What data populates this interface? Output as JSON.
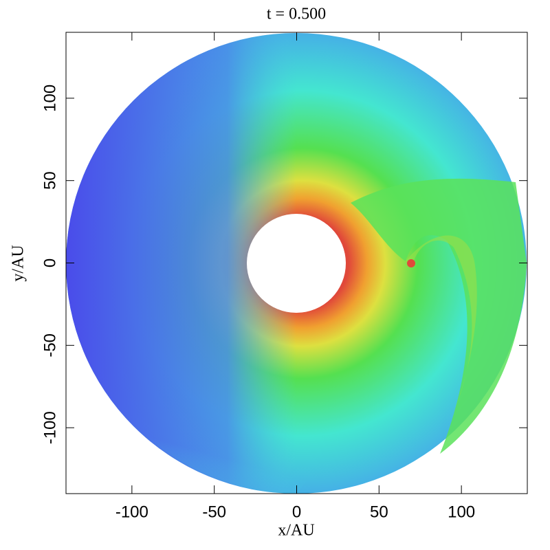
{
  "chart_data": {
    "type": "image",
    "title": "t = 0.500",
    "x_label": "x/AU",
    "y_label": "y/AU",
    "xlim": [
      -140,
      140
    ],
    "ylim": [
      -140,
      140
    ],
    "xticks": [
      -100,
      -50,
      0,
      50,
      100
    ],
    "yticks": [
      -100,
      -50,
      0,
      50,
      100
    ]
  }
}
